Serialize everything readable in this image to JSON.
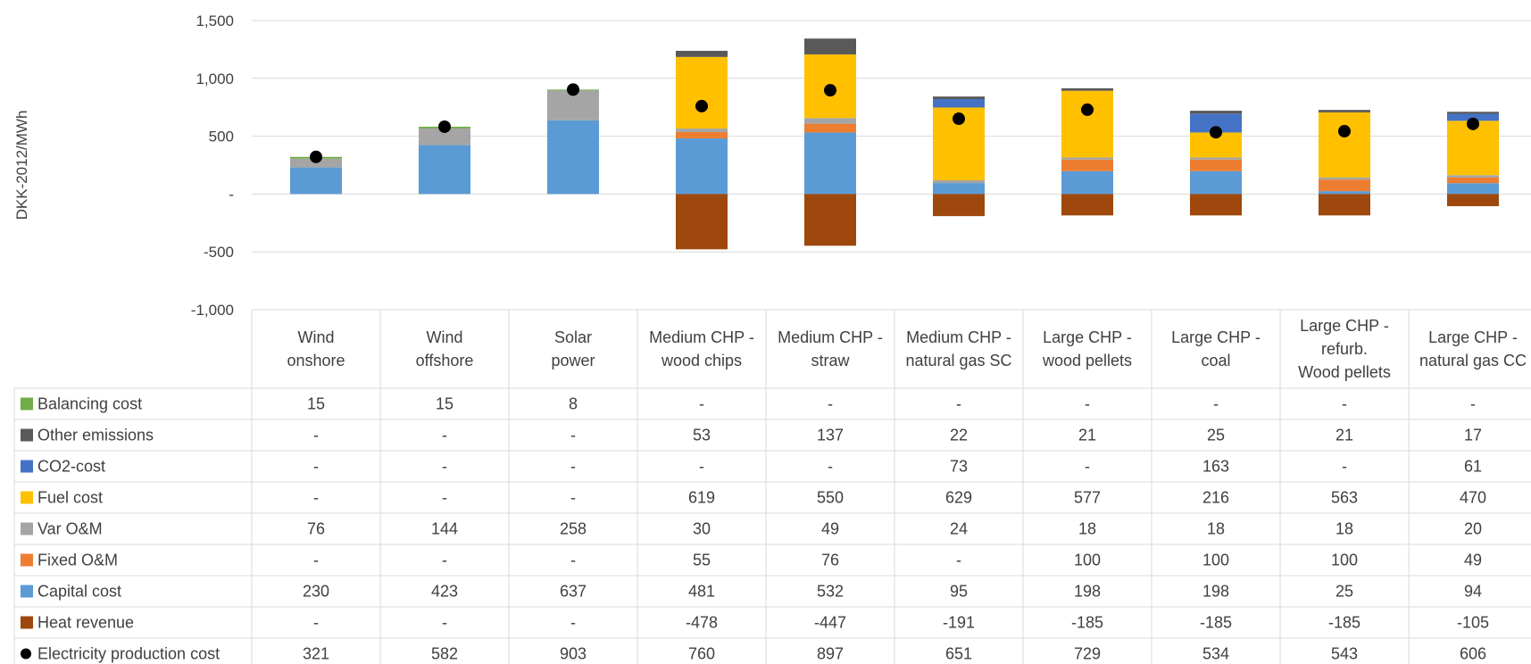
{
  "chart_data": {
    "type": "bar",
    "stacked": true,
    "ylabel": "DKK-2012/MWh",
    "ylim": [
      -1000,
      1500
    ],
    "yticks": [
      1500,
      1000,
      500,
      0,
      -500,
      -1000
    ],
    "ytick_labels": [
      "1,500",
      "1,000",
      "500",
      "-",
      "-500",
      "-1,000"
    ],
    "grid": true,
    "categories": [
      [
        "Wind",
        "onshore"
      ],
      [
        "Wind",
        "offshore"
      ],
      [
        "Solar",
        "power"
      ],
      [
        "Medium CHP -",
        "wood chips"
      ],
      [
        "Medium CHP -",
        "straw"
      ],
      [
        "Medium CHP -",
        "natural gas SC"
      ],
      [
        "Large CHP -",
        "wood pellets"
      ],
      [
        "Large CHP -",
        "coal"
      ],
      [
        "Large CHP -",
        "refurb.",
        "Wood pellets"
      ],
      [
        "Large CHP -",
        "natural gas CC"
      ]
    ],
    "series": [
      {
        "name": "Balancing cost",
        "color": "#70ad47",
        "values": [
          15,
          15,
          8,
          0,
          0,
          0,
          0,
          0,
          0,
          0
        ],
        "labels": [
          "15",
          "15",
          "8",
          "-",
          "-",
          "-",
          "-",
          "-",
          "-",
          "-"
        ]
      },
      {
        "name": "Other emissions",
        "color": "#595959",
        "values": [
          0,
          0,
          0,
          53,
          137,
          22,
          21,
          25,
          21,
          17
        ],
        "labels": [
          "-",
          "-",
          "-",
          "53",
          "137",
          "22",
          "21",
          "25",
          "21",
          "17"
        ]
      },
      {
        "name": "CO2-cost",
        "color": "#4472c4",
        "values": [
          0,
          0,
          0,
          0,
          0,
          73,
          0,
          163,
          0,
          61
        ],
        "labels": [
          "-",
          "-",
          "-",
          "-",
          "-",
          "73",
          "-",
          "163",
          "-",
          "61"
        ]
      },
      {
        "name": "Fuel cost",
        "color": "#ffc000",
        "values": [
          0,
          0,
          0,
          619,
          550,
          629,
          577,
          216,
          563,
          470
        ],
        "labels": [
          "-",
          "-",
          "-",
          "619",
          "550",
          "629",
          "577",
          "216",
          "563",
          "470"
        ]
      },
      {
        "name": "Var O&M",
        "color": "#a5a5a5",
        "values": [
          76,
          144,
          258,
          30,
          49,
          24,
          18,
          18,
          18,
          20
        ],
        "labels": [
          "76",
          "144",
          "258",
          "30",
          "49",
          "24",
          "18",
          "18",
          "18",
          "20"
        ]
      },
      {
        "name": "Fixed O&M",
        "color": "#ed7d31",
        "values": [
          0,
          0,
          0,
          55,
          76,
          0,
          100,
          100,
          100,
          49
        ],
        "labels": [
          "-",
          "-",
          "-",
          "55",
          "76",
          "-",
          "100",
          "100",
          "100",
          "49"
        ]
      },
      {
        "name": "Capital cost",
        "color": "#5b9bd5",
        "values": [
          230,
          423,
          637,
          481,
          532,
          95,
          198,
          198,
          25,
          94
        ],
        "labels": [
          "230",
          "423",
          "637",
          "481",
          "532",
          "95",
          "198",
          "198",
          "25",
          "94"
        ]
      },
      {
        "name": "Heat revenue",
        "color": "#9e480e",
        "values": [
          0,
          0,
          0,
          -478,
          -447,
          -191,
          -185,
          -185,
          -185,
          -105
        ],
        "labels": [
          "-",
          "-",
          "-",
          "-478",
          "-447",
          "-191",
          "-185",
          "-185",
          "-185",
          "-105"
        ]
      }
    ],
    "points": {
      "name": "Electricity production cost",
      "color": "#000000",
      "values": [
        321,
        582,
        903,
        760,
        897,
        651,
        729,
        534,
        543,
        606
      ],
      "labels": [
        "321",
        "582",
        "903",
        "760",
        "897",
        "651",
        "729",
        "534",
        "543",
        "606"
      ]
    }
  }
}
